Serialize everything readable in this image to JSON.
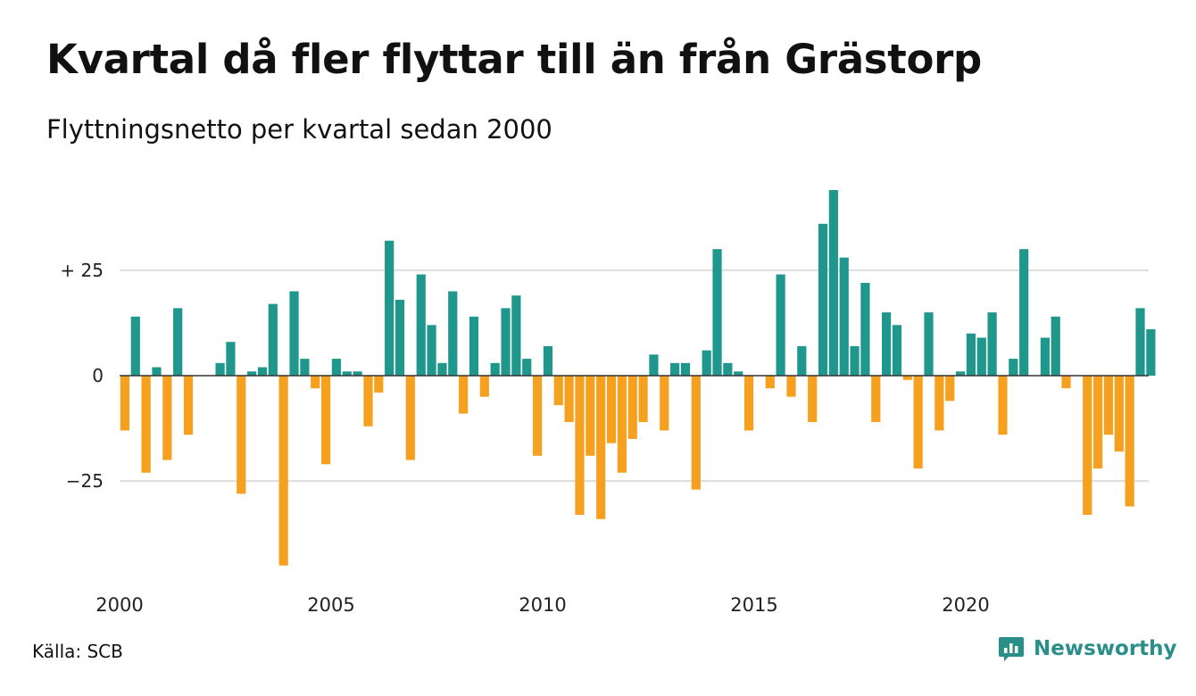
{
  "chart_data": {
    "type": "bar",
    "title": "Kvartal då fler flyttar till än från Grästorp",
    "subtitle": "Flyttningsnetto per kvartal sedan 2000",
    "x_ticks": [
      "2000",
      "2005",
      "2010",
      "2015",
      "2020"
    ],
    "y_ticks": [
      {
        "value": 25,
        "label": "+ 25"
      },
      {
        "value": 0,
        "label": "0"
      },
      {
        "value": -25,
        "label": "−25"
      }
    ],
    "ylim": [
      -47,
      44
    ],
    "grid": true,
    "period_start": "2000 Q1",
    "values": [
      -13,
      14,
      -23,
      2,
      -20,
      16,
      -14,
      0,
      0,
      3,
      8,
      -28,
      1,
      2,
      17,
      -45,
      20,
      4,
      -3,
      -21,
      4,
      1,
      1,
      -12,
      -4,
      32,
      18,
      -20,
      24,
      12,
      3,
      20,
      -9,
      14,
      -5,
      3,
      16,
      19,
      4,
      -19,
      7,
      -7,
      -11,
      -33,
      -19,
      -34,
      -16,
      -23,
      -15,
      -11,
      5,
      -13,
      3,
      3,
      -27,
      6,
      30,
      3,
      1,
      -13,
      0,
      -3,
      24,
      -5,
      7,
      -11,
      36,
      44,
      28,
      7,
      22,
      -11,
      15,
      12,
      -1,
      -22,
      15,
      -13,
      -6,
      1,
      10,
      9,
      15,
      -14,
      4,
      30,
      0,
      9,
      14,
      -3,
      0,
      -33,
      -22,
      -14,
      -18,
      -31,
      16,
      11
    ],
    "colors": {
      "positive": "#1f978c",
      "negative": "#f5a11f",
      "grid": "#dddddd",
      "axis": "#333333"
    }
  },
  "footer": {
    "source": "Källa: SCB",
    "brand": "Newsworthy"
  },
  "icons": {
    "brand_logo": "newsworthy-logo-icon"
  }
}
